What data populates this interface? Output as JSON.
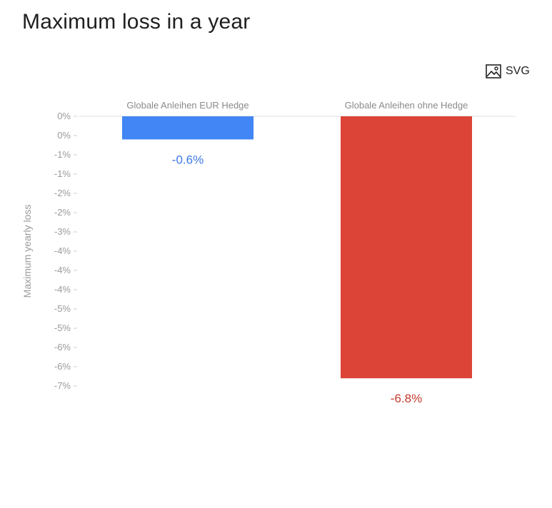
{
  "page": {
    "title": "Maximum loss in a year"
  },
  "toolbar": {
    "export_label": "SVG",
    "export_icon": "image-icon"
  },
  "chart_data": {
    "type": "bar",
    "categories": [
      "Globale Anleihen EUR Hedge",
      "Globale Anleihen ohne Hedge"
    ],
    "values": [
      -0.6,
      -6.8
    ],
    "value_labels": [
      "-0.6%",
      "-6.8%"
    ],
    "colors": [
      "#4285f4",
      "#db4437"
    ],
    "value_label_colors": [
      "#3b78e7",
      "#c5392c"
    ],
    "ylabel": "Maximum yearly loss",
    "ylim": [
      -7,
      0
    ],
    "y_ticks": [
      "0%",
      "0%",
      "-1%",
      "-1%",
      "-2%",
      "-2%",
      "-3%",
      "-4%",
      "-4%",
      "-4%",
      "-5%",
      "-5%",
      "-6%",
      "-6%",
      "-7%"
    ],
    "category_axis_position": "top",
    "grid": false,
    "legend": "none"
  }
}
